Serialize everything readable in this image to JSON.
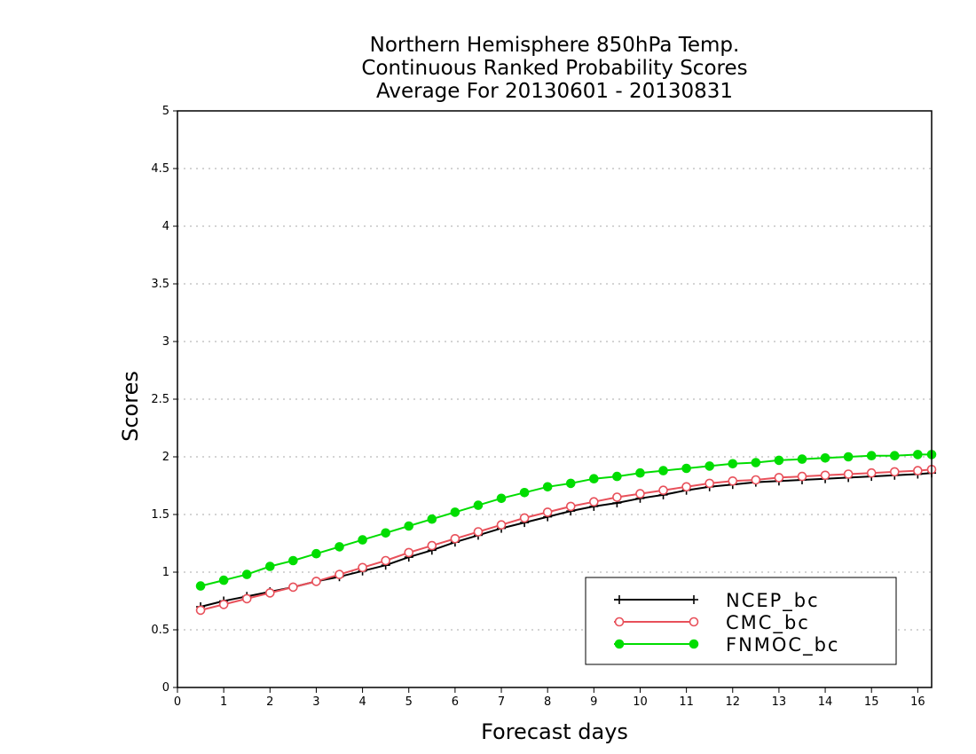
{
  "chart_data": {
    "type": "line",
    "title": [
      "Northern Hemisphere 850hPa Temp.",
      "Continuous Ranked Probability Scores",
      "Average For 20130601 - 20130831"
    ],
    "xlabel": "Forecast days",
    "ylabel": "Scores",
    "xlim": [
      0,
      16.3
    ],
    "ylim": [
      0,
      5
    ],
    "xticks": [
      "0",
      "1",
      "2",
      "3",
      "4",
      "5",
      "6",
      "7",
      "8",
      "9",
      "10",
      "11",
      "12",
      "13",
      "14",
      "15",
      "16"
    ],
    "yticks": [
      "0",
      "0.5",
      "1",
      "1.5",
      "2",
      "2.5",
      "3",
      "3.5",
      "4",
      "4.5",
      "5"
    ],
    "grid": true,
    "legend_position": "bottom-right",
    "x": [
      0.5,
      1,
      1.5,
      2,
      2.5,
      3,
      3.5,
      4,
      4.5,
      5,
      5.5,
      6,
      6.5,
      7,
      7.5,
      8,
      8.5,
      9,
      9.5,
      10,
      10.5,
      11,
      11.5,
      12,
      12.5,
      13,
      13.5,
      14,
      14.5,
      15,
      15.5,
      16,
      16.3
    ],
    "series": [
      {
        "name": "NCEP_bc",
        "color": "#000000",
        "marker": "plus",
        "values": [
          0.7,
          0.75,
          0.79,
          0.83,
          0.87,
          0.92,
          0.96,
          1.01,
          1.06,
          1.13,
          1.19,
          1.26,
          1.32,
          1.38,
          1.43,
          1.48,
          1.53,
          1.57,
          1.6,
          1.64,
          1.67,
          1.71,
          1.74,
          1.76,
          1.78,
          1.79,
          1.8,
          1.81,
          1.82,
          1.83,
          1.84,
          1.85,
          1.86
        ]
      },
      {
        "name": "CMC_bc",
        "color": "#e8505a",
        "marker": "open-circle",
        "values": [
          0.67,
          0.72,
          0.77,
          0.82,
          0.87,
          0.92,
          0.98,
          1.04,
          1.1,
          1.17,
          1.23,
          1.29,
          1.35,
          1.41,
          1.47,
          1.52,
          1.57,
          1.61,
          1.65,
          1.68,
          1.71,
          1.74,
          1.77,
          1.79,
          1.8,
          1.82,
          1.83,
          1.84,
          1.85,
          1.86,
          1.87,
          1.88,
          1.89
        ]
      },
      {
        "name": "FNMOC_bc",
        "color": "#00dd00",
        "marker": "filled-circle",
        "values": [
          0.88,
          0.93,
          0.98,
          1.05,
          1.1,
          1.16,
          1.22,
          1.28,
          1.34,
          1.4,
          1.46,
          1.52,
          1.58,
          1.64,
          1.69,
          1.74,
          1.77,
          1.81,
          1.83,
          1.86,
          1.88,
          1.9,
          1.92,
          1.94,
          1.95,
          1.97,
          1.98,
          1.99,
          2.0,
          2.01,
          2.01,
          2.02,
          2.02
        ]
      }
    ]
  }
}
